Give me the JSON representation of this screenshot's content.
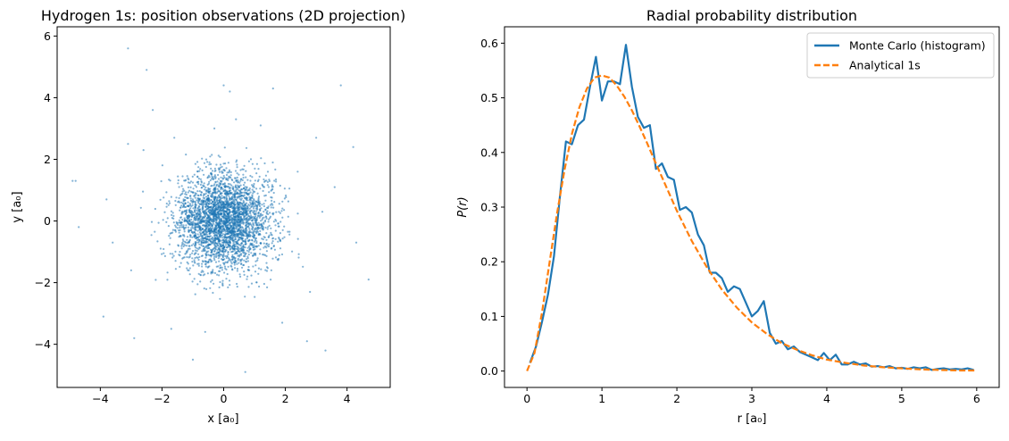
{
  "chart_data": [
    {
      "type": "scatter",
      "title": "Hydrogen 1s: position observations (2D projection)",
      "xlabel": "x [a₀]",
      "ylabel": "y [a₀]",
      "xlim": [
        -5.4,
        5.4
      ],
      "ylim": [
        -5.4,
        6.3
      ],
      "xticks": [
        -4,
        -2,
        0,
        2,
        4
      ],
      "yticks": [
        -4,
        -2,
        0,
        2,
        4,
        6
      ],
      "tick_labels_x": [
        "−4",
        "−2",
        "0",
        "2",
        "4"
      ],
      "tick_labels_y": [
        "−4",
        "−2",
        "0",
        "2",
        "4",
        "6"
      ],
      "color": "#1f77b4",
      "alpha": 0.55,
      "grid": false,
      "points": [
        [
          -3.1,
          5.6
        ],
        [
          -2.5,
          4.9
        ],
        [
          0.0,
          4.4
        ],
        [
          0.2,
          4.2
        ],
        [
          1.6,
          4.3
        ],
        [
          3.8,
          4.4
        ],
        [
          -4.9,
          1.3
        ],
        [
          -4.8,
          1.3
        ],
        [
          -4.7,
          -0.2
        ],
        [
          4.2,
          2.4
        ],
        [
          4.7,
          -1.9
        ],
        [
          4.3,
          -0.7
        ],
        [
          -3.9,
          -3.1
        ],
        [
          -2.9,
          -3.8
        ],
        [
          0.7,
          -4.9
        ],
        [
          -1.0,
          -4.5
        ],
        [
          2.7,
          -3.9
        ],
        [
          3.3,
          -4.2
        ],
        [
          -3.8,
          0.7
        ],
        [
          -3.6,
          -0.7
        ],
        [
          3.6,
          1.1
        ],
        [
          3.0,
          2.7
        ],
        [
          2.8,
          -2.3
        ],
        [
          -2.6,
          2.3
        ],
        [
          -3.1,
          2.5
        ],
        [
          -2.3,
          3.6
        ],
        [
          1.2,
          3.1
        ],
        [
          -0.6,
          -3.6
        ],
        [
          1.9,
          -3.3
        ],
        [
          -1.7,
          -3.5
        ],
        [
          0.4,
          3.3
        ],
        [
          -0.3,
          3.0
        ],
        [
          2.4,
          1.6
        ],
        [
          -1.6,
          2.7
        ],
        [
          3.2,
          0.3
        ],
        [
          -3.0,
          -1.6
        ]
      ],
      "random_cloud": {
        "n": 3200,
        "sigma": 0.78,
        "seed": 7
      }
    },
    {
      "type": "line",
      "title": "Radial probability distribution",
      "xlabel": "r [a₀]",
      "ylabel": "P(r)",
      "xlim": [
        -0.3,
        6.3
      ],
      "ylim": [
        -0.03,
        0.63
      ],
      "xticks": [
        0,
        1,
        2,
        3,
        4,
        5,
        6
      ],
      "yticks": [
        0.0,
        0.1,
        0.2,
        0.3,
        0.4,
        0.5,
        0.6
      ],
      "tick_labels_x": [
        "0",
        "1",
        "2",
        "3",
        "4",
        "5",
        "6"
      ],
      "tick_labels_y": [
        "0.0",
        "0.1",
        "0.2",
        "0.3",
        "0.4",
        "0.5",
        "0.6"
      ],
      "grid": false,
      "legend": "top-right",
      "series": [
        {
          "name": "Monte Carlo (histogram)",
          "color": "#1f77b4",
          "style": "solid",
          "x": [
            0.04,
            0.12,
            0.2,
            0.28,
            0.36,
            0.44,
            0.52,
            0.6,
            0.68,
            0.76,
            0.84,
            0.92,
            1.0,
            1.08,
            1.16,
            1.24,
            1.32,
            1.4,
            1.48,
            1.56,
            1.64,
            1.72,
            1.8,
            1.88,
            1.96,
            2.04,
            2.12,
            2.2,
            2.28,
            2.36,
            2.44,
            2.52,
            2.6,
            2.68,
            2.76,
            2.84,
            2.92,
            3.0,
            3.08,
            3.16,
            3.24,
            3.32,
            3.4,
            3.48,
            3.56,
            3.64,
            3.72,
            3.8,
            3.88,
            3.96,
            4.04,
            4.12,
            4.2,
            4.28,
            4.36,
            4.44,
            4.52,
            4.6,
            4.68,
            4.76,
            4.84,
            4.92,
            5.0,
            5.08,
            5.16,
            5.24,
            5.32,
            5.4,
            5.48,
            5.56,
            5.64,
            5.72,
            5.8,
            5.88,
            5.96
          ],
          "values": [
            0.015,
            0.045,
            0.09,
            0.14,
            0.21,
            0.32,
            0.42,
            0.415,
            0.45,
            0.46,
            0.52,
            0.575,
            0.495,
            0.53,
            0.53,
            0.525,
            0.597,
            0.52,
            0.465,
            0.445,
            0.45,
            0.37,
            0.38,
            0.355,
            0.35,
            0.295,
            0.3,
            0.29,
            0.25,
            0.23,
            0.18,
            0.18,
            0.17,
            0.145,
            0.155,
            0.15,
            0.125,
            0.1,
            0.11,
            0.128,
            0.07,
            0.05,
            0.055,
            0.04,
            0.045,
            0.035,
            0.03,
            0.025,
            0.02,
            0.033,
            0.02,
            0.03,
            0.012,
            0.012,
            0.017,
            0.012,
            0.014,
            0.008,
            0.009,
            0.007,
            0.009,
            0.005,
            0.006,
            0.004,
            0.007,
            0.005,
            0.007,
            0.002,
            0.004,
            0.005,
            0.003,
            0.004,
            0.003,
            0.005,
            0.002
          ]
        },
        {
          "name": "Analytical 1s",
          "color": "#ff7f0e",
          "style": "dashed",
          "x": [
            0.0,
            0.1,
            0.2,
            0.3,
            0.4,
            0.5,
            0.6,
            0.7,
            0.8,
            0.9,
            1.0,
            1.1,
            1.2,
            1.3,
            1.4,
            1.5,
            1.6,
            1.7,
            1.8,
            1.9,
            2.0,
            2.2,
            2.4,
            2.6,
            2.8,
            3.0,
            3.2,
            3.4,
            3.6,
            3.8,
            4.0,
            4.25,
            4.5,
            4.75,
            5.0,
            5.25,
            5.5,
            5.75,
            6.0
          ],
          "values": [
            0.0,
            0.033,
            0.107,
            0.198,
            0.288,
            0.368,
            0.434,
            0.483,
            0.517,
            0.537,
            0.541,
            0.537,
            0.522,
            0.502,
            0.477,
            0.448,
            0.418,
            0.386,
            0.355,
            0.324,
            0.293,
            0.238,
            0.19,
            0.149,
            0.116,
            0.089,
            0.068,
            0.051,
            0.039,
            0.029,
            0.021,
            0.015,
            0.01,
            0.007,
            0.005,
            0.003,
            0.002,
            0.001,
            0.001
          ]
        }
      ]
    }
  ]
}
